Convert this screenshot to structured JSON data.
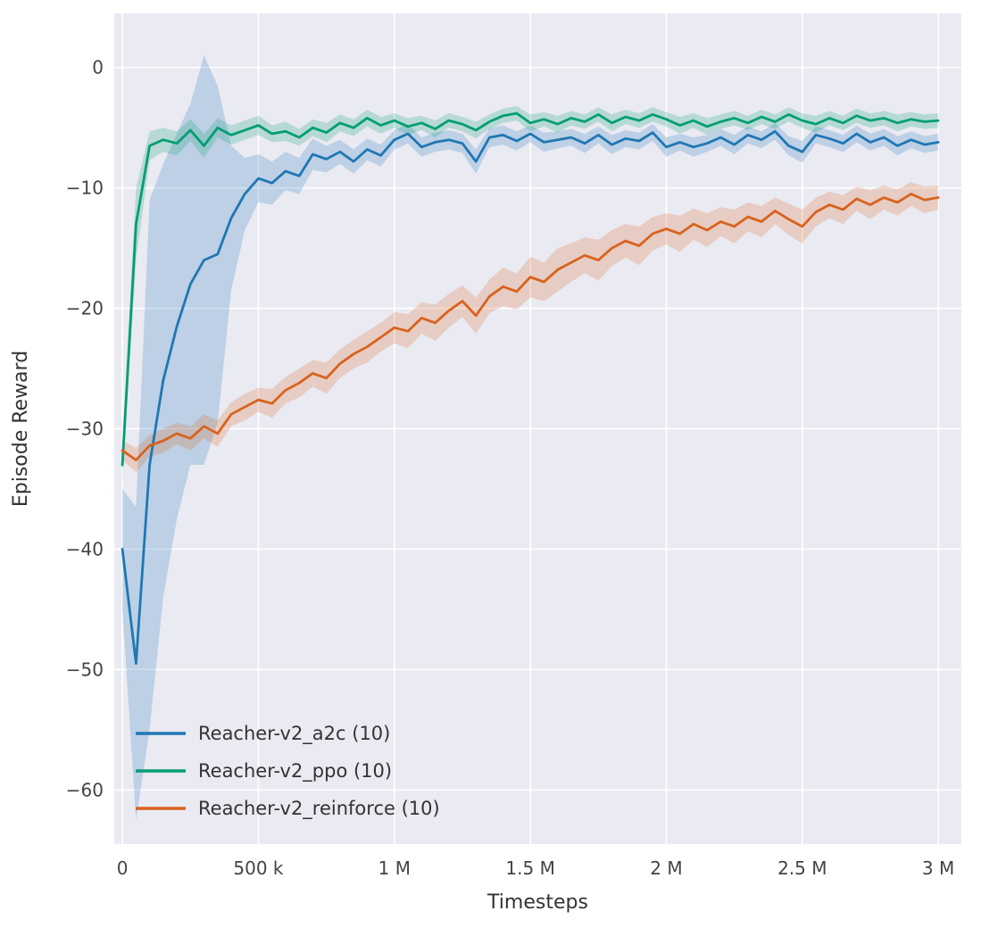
{
  "chart_data": {
    "type": "line",
    "title": "",
    "xlabel": "Timesteps",
    "ylabel": "Episode Reward",
    "xlim": [
      -30000,
      3085000
    ],
    "ylim": [
      -64.5,
      4.5
    ],
    "grid": true,
    "legend_position": "lower left",
    "colors": {
      "figure_background": "#ffffff",
      "plot_background": "#eaeaf2",
      "grid": "#ffffff",
      "tick_text": "#444444",
      "label_text": "#333333"
    },
    "xticks": {
      "values": [
        0,
        500000,
        1000000,
        1500000,
        2000000,
        2500000,
        3000000
      ],
      "labels": [
        "0",
        "500 k",
        "1 M",
        "1.5 M",
        "2 M",
        "2.5 M",
        "3 M"
      ]
    },
    "yticks": {
      "values": [
        0,
        -10,
        -20,
        -30,
        -40,
        -50,
        -60
      ],
      "labels": [
        "0",
        "−10",
        "−20",
        "−30",
        "−40",
        "−50",
        "−60"
      ]
    },
    "x": [
      0,
      50000,
      100000,
      150000,
      200000,
      250000,
      300000,
      350000,
      400000,
      450000,
      500000,
      550000,
      600000,
      650000,
      700000,
      750000,
      800000,
      850000,
      900000,
      950000,
      1000000,
      1050000,
      1100000,
      1150000,
      1200000,
      1250000,
      1300000,
      1350000,
      1400000,
      1450000,
      1500000,
      1550000,
      1600000,
      1650000,
      1700000,
      1750000,
      1800000,
      1850000,
      1900000,
      1950000,
      2000000,
      2050000,
      2100000,
      2150000,
      2200000,
      2250000,
      2300000,
      2350000,
      2400000,
      2450000,
      2500000,
      2550000,
      2600000,
      2650000,
      2700000,
      2750000,
      2800000,
      2850000,
      2900000,
      2950000,
      3000000
    ],
    "series": [
      {
        "id": "a2c",
        "name": "Reacher-v2_a2c (10)",
        "color": "#1f77b4",
        "values": [
          -40.0,
          -49.5,
          -33.0,
          -26.0,
          -21.5,
          -18.0,
          -16.0,
          -15.5,
          -12.5,
          -10.5,
          -9.2,
          -9.6,
          -8.6,
          -9.0,
          -7.2,
          -7.6,
          -7.0,
          -7.8,
          -6.8,
          -7.3,
          -6.0,
          -5.5,
          -6.6,
          -6.2,
          -6.0,
          -6.3,
          -7.8,
          -5.8,
          -5.6,
          -6.1,
          -5.5,
          -6.2,
          -6.0,
          -5.8,
          -6.3,
          -5.6,
          -6.4,
          -5.9,
          -6.1,
          -5.4,
          -6.6,
          -6.2,
          -6.6,
          -6.3,
          -5.8,
          -6.4,
          -5.6,
          -6.0,
          -5.3,
          -6.5,
          -7.0,
          -5.6,
          -5.9,
          -6.3,
          -5.5,
          -6.2,
          -5.8,
          -6.5,
          -6.0,
          -6.4,
          -6.2
        ],
        "band": [
          5,
          13,
          22,
          18,
          16,
          15,
          17,
          14,
          6,
          3,
          2,
          1.8,
          1.6,
          1.5,
          1.3,
          1.1,
          1.0,
          1.0,
          0.9,
          0.9,
          0.8,
          0.8,
          0.8,
          0.8,
          0.8,
          0.8,
          1.0,
          0.8,
          0.8,
          0.8,
          0.7,
          0.8,
          0.7,
          0.7,
          0.8,
          0.7,
          0.8,
          0.7,
          0.7,
          0.7,
          0.8,
          0.7,
          0.8,
          0.7,
          0.7,
          0.8,
          0.7,
          0.7,
          0.7,
          0.8,
          0.9,
          0.7,
          0.7,
          0.7,
          0.7,
          0.7,
          0.7,
          0.8,
          0.7,
          0.7,
          0.7
        ]
      },
      {
        "id": "ppo",
        "name": "Reacher-v2_ppo (10)",
        "color": "#029e73",
        "values": [
          -33.0,
          -13.0,
          -6.5,
          -6.0,
          -6.3,
          -5.2,
          -6.5,
          -5.0,
          -5.6,
          -5.2,
          -4.8,
          -5.5,
          -5.3,
          -5.8,
          -5.0,
          -5.4,
          -4.6,
          -5.0,
          -4.2,
          -4.8,
          -4.4,
          -4.9,
          -4.6,
          -5.1,
          -4.4,
          -4.7,
          -5.2,
          -4.5,
          -4.0,
          -3.8,
          -4.6,
          -4.3,
          -4.7,
          -4.2,
          -4.5,
          -3.9,
          -4.6,
          -4.1,
          -4.4,
          -3.9,
          -4.3,
          -4.8,
          -4.4,
          -4.9,
          -4.5,
          -4.2,
          -4.6,
          -4.1,
          -4.5,
          -3.9,
          -4.4,
          -4.7,
          -4.2,
          -4.6,
          -4.0,
          -4.4,
          -4.2,
          -4.6,
          -4.3,
          -4.5,
          -4.4
        ],
        "band": [
          1.5,
          3,
          1.2,
          1.0,
          1.0,
          0.9,
          1.0,
          0.8,
          0.8,
          0.8,
          0.8,
          0.7,
          0.8,
          0.7,
          0.7,
          0.8,
          0.7,
          0.7,
          0.7,
          0.7,
          0.6,
          0.7,
          0.6,
          0.7,
          0.6,
          0.6,
          0.7,
          0.6,
          0.6,
          0.6,
          0.7,
          0.6,
          0.7,
          0.6,
          0.6,
          0.6,
          0.7,
          0.6,
          0.6,
          0.6,
          0.6,
          0.7,
          0.6,
          0.7,
          0.6,
          0.6,
          0.6,
          0.6,
          0.6,
          0.6,
          0.6,
          0.7,
          0.6,
          0.6,
          0.6,
          0.6,
          0.6,
          0.7,
          0.6,
          0.6,
          0.6
        ]
      },
      {
        "id": "reinforce",
        "name": "Reacher-v2_reinforce (10)",
        "color": "#d9621d",
        "values": [
          -31.8,
          -32.6,
          -31.4,
          -31.0,
          -30.4,
          -30.8,
          -29.8,
          -30.4,
          -28.8,
          -28.2,
          -27.6,
          -27.9,
          -26.8,
          -26.2,
          -25.4,
          -25.8,
          -24.6,
          -23.8,
          -23.2,
          -22.4,
          -21.6,
          -21.9,
          -20.8,
          -21.2,
          -20.2,
          -19.4,
          -20.6,
          -19.0,
          -18.2,
          -18.6,
          -17.4,
          -17.8,
          -16.8,
          -16.2,
          -15.6,
          -16.0,
          -15.0,
          -14.4,
          -14.8,
          -13.8,
          -13.4,
          -13.8,
          -13.0,
          -13.5,
          -12.8,
          -13.2,
          -12.4,
          -12.8,
          -11.9,
          -12.6,
          -13.2,
          -12.0,
          -11.4,
          -11.8,
          -10.9,
          -11.4,
          -10.8,
          -11.2,
          -10.5,
          -11.0,
          -10.8
        ],
        "band": [
          0.8,
          1.0,
          0.9,
          1.0,
          0.9,
          1.0,
          1.0,
          1.1,
          1.0,
          1.1,
          1.0,
          1.2,
          1.1,
          1.2,
          1.1,
          1.3,
          1.2,
          1.2,
          1.3,
          1.2,
          1.3,
          1.4,
          1.3,
          1.5,
          1.4,
          1.3,
          1.5,
          1.4,
          1.6,
          1.5,
          1.7,
          1.6,
          1.8,
          1.6,
          1.5,
          1.7,
          1.5,
          1.4,
          1.6,
          1.4,
          1.3,
          1.5,
          1.3,
          1.4,
          1.2,
          1.4,
          1.2,
          1.3,
          1.1,
          1.3,
          1.4,
          1.2,
          1.1,
          1.2,
          1.0,
          1.2,
          1.0,
          1.1,
          1.0,
          1.1,
          1.0
        ]
      }
    ]
  }
}
